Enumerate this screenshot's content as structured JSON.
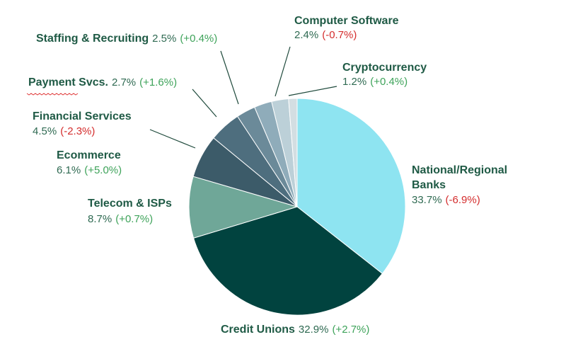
{
  "chart_data": {
    "type": "pie",
    "title": "",
    "slices": [
      {
        "label": "National/Regional Banks",
        "label_lines": [
          "National/Regional",
          "Banks"
        ],
        "value": 33.7,
        "value_text": "33.7%",
        "change": -6.9,
        "change_text": "(-6.9%)",
        "color": "#8ee4f1"
      },
      {
        "label": "Credit Unions",
        "label_lines": [
          "Credit Unions"
        ],
        "value": 32.9,
        "value_text": "32.9%",
        "change": 2.7,
        "change_text": "(+2.7%)",
        "color": "#01433f"
      },
      {
        "label": "Telecom & ISPs",
        "label_lines": [
          "Telecom & ISPs"
        ],
        "value": 8.7,
        "value_text": "8.7%",
        "change": 0.7,
        "change_text": "(+0.7%)",
        "color": "#6fa798"
      },
      {
        "label": "Ecommerce",
        "label_lines": [
          "Ecommerce"
        ],
        "value": 6.1,
        "value_text": "6.1%",
        "change": 5.0,
        "change_text": "(+5.0%)",
        "color": "#3c5b69"
      },
      {
        "label": "Financial Services",
        "label_lines": [
          "Financial Services"
        ],
        "value": 4.5,
        "value_text": "4.5%",
        "change": -2.3,
        "change_text": "(-2.3%)",
        "color": "#4e6e7e"
      },
      {
        "label": "Payment Svcs.",
        "label_lines": [
          "Payment Svcs."
        ],
        "value": 2.7,
        "value_text": "2.7%",
        "change": 1.6,
        "change_text": "(+1.6%)",
        "color": "#6b8a99"
      },
      {
        "label": "Staffing & Recruiting",
        "label_lines": [
          "Staffing & Recruiting"
        ],
        "value": 2.5,
        "value_text": "2.5%",
        "change": 0.4,
        "change_text": "(+0.4%)",
        "color": "#8facba"
      },
      {
        "label": "Computer Software",
        "label_lines": [
          "Computer Software"
        ],
        "value": 2.4,
        "value_text": "2.4%",
        "change": -0.7,
        "change_text": "(-0.7%)",
        "color": "#bcd0d8"
      },
      {
        "label": "Cryptocurrency",
        "label_lines": [
          "Cryptocurrency"
        ],
        "value": 1.2,
        "value_text": "1.2%",
        "change": 0.4,
        "change_text": "(+0.4%)",
        "color": "#d3dee2"
      }
    ],
    "start_angle": "12 o'clock",
    "direction": "clockwise",
    "legend": "none",
    "colors": {
      "label_name": "#1f5a45",
      "value_text": "#2f6a52",
      "positive_change": "#3ea35a",
      "negative_change": "#d42d2d",
      "leader_line": "#1f4a3c",
      "spellcheck_underline": "#e03a3a"
    }
  }
}
